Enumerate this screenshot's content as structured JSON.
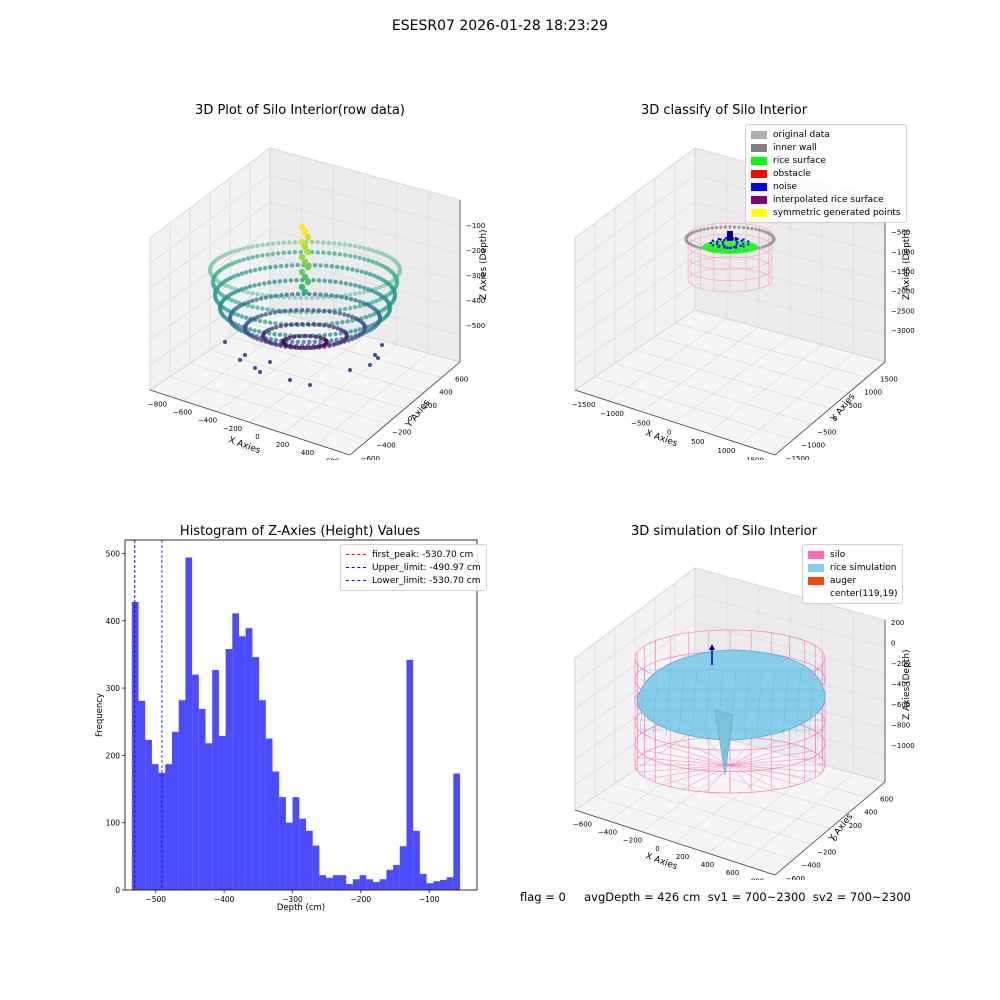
{
  "suptitle": "ESESR07 2026-01-28 18:23:29",
  "panels": {
    "raw": {
      "title": "3D Plot of Silo Interior(row data)",
      "xlabel": "X Axies",
      "ylabel": "Y Axies",
      "zlabel": "Z Axies (Depth)",
      "x_ticks": [
        "−800",
        "−600",
        "−400",
        "−200",
        "0",
        "200",
        "400",
        "600"
      ],
      "y_ticks": [
        "−600",
        "−400",
        "−200",
        "0",
        "200",
        "400",
        "600"
      ],
      "z_ticks": [
        "−100",
        "−200",
        "−300",
        "−400",
        "−500"
      ]
    },
    "classify": {
      "title": "3D classify of Silo Interior",
      "xlabel": "X Axies",
      "ylabel": "Y Axies",
      "zlabel": "Z Axies (Depth)",
      "x_ticks": [
        "−1500",
        "−1000",
        "−500",
        "0",
        "500",
        "1000",
        "1500"
      ],
      "y_ticks": [
        "−1500",
        "−1000",
        "−500",
        "0",
        "500",
        "1000",
        "1500"
      ],
      "z_ticks": [
        "0",
        "−500",
        "−1000",
        "−1500",
        "−2000",
        "−2500",
        "−3000"
      ],
      "legend": [
        {
          "label": "original data",
          "color": "#b0b0b0"
        },
        {
          "label": "inner wall",
          "color": "#808080"
        },
        {
          "label": "rice surface",
          "color": "#00ff00"
        },
        {
          "label": "obstacle",
          "color": "#ff0000"
        },
        {
          "label": "noise",
          "color": "#0000ff"
        },
        {
          "label": "interpolated rice surface",
          "color": "#800080"
        },
        {
          "label": "symmetric generated points",
          "color": "#ffff00"
        }
      ]
    },
    "simulation": {
      "title": "3D simulation of Silo Interior",
      "xlabel": "X Axies",
      "ylabel": "Y Axies",
      "zlabel": "Z Axies (Depth)",
      "x_ticks": [
        "−600",
        "−400",
        "−200",
        "0",
        "200",
        "400",
        "600",
        "800"
      ],
      "y_ticks": [
        "−600",
        "−400",
        "−200",
        "0",
        "200",
        "400",
        "600"
      ],
      "z_ticks": [
        "200",
        "0",
        "−200",
        "−400",
        "−600",
        "−800",
        "−1000"
      ],
      "legend": [
        {
          "label": "silo",
          "color": "#ff69b4"
        },
        {
          "label": "rice simulation",
          "color": "#87ceeb"
        },
        {
          "label": "auger",
          "color": "#ff4500"
        },
        {
          "label": "center(119,19)",
          "color": ""
        }
      ]
    }
  },
  "footer": {
    "text": "flag = 0     avgDepth = 426 cm  sv1 = 700~2300  sv2 = 700~2300"
  },
  "chart_data": [
    {
      "type": "bar",
      "title": "Histogram of Z-Axies (Height) Values",
      "xlabel": "Depth (cm)",
      "ylabel": "Frequency",
      "xlim": [
        -545,
        -30
      ],
      "ylim": [
        0,
        520
      ],
      "x_ticks": [
        -500,
        -400,
        -300,
        -200,
        -100
      ],
      "y_ticks": [
        0,
        100,
        200,
        300,
        400,
        500
      ],
      "bin_start": -535,
      "bin_width": 9.8,
      "values": [
        428,
        281,
        223,
        187,
        174,
        187,
        235,
        282,
        494,
        320,
        269,
        218,
        327,
        229,
        358,
        411,
        377,
        389,
        346,
        282,
        225,
        176,
        138,
        100,
        138,
        106,
        88,
        66,
        22,
        18,
        22,
        22,
        9,
        16,
        22,
        16,
        12,
        16,
        30,
        37,
        65,
        342,
        88,
        24,
        10,
        13,
        15,
        19,
        173
      ],
      "bar_color": "#0000ff",
      "bar_alpha": 0.7,
      "vlines": [
        {
          "x": -530.7,
          "color": "#ff0000",
          "label": "first_peak: -530.70 cm"
        },
        {
          "x": -490.97,
          "color": "#0000ff",
          "label": "Upper_limit: -490.97 cm"
        },
        {
          "x": -530.7,
          "color": "#0000ff",
          "label": "Lower_limit: -530.70 cm"
        }
      ],
      "legend_position": "top-right"
    }
  ]
}
